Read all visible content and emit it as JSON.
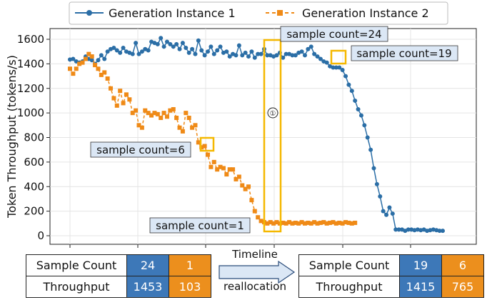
{
  "chart_data": {
    "type": "line",
    "ylabel": "Token Throughput (tokens/s)",
    "xlabel": "",
    "ylim": [
      0,
      1700
    ],
    "yticks": [
      0,
      200,
      400,
      600,
      800,
      1000,
      1200,
      1400,
      1600
    ],
    "grid": true,
    "legend_position": "top",
    "series": [
      {
        "name": "Generation Instance 1",
        "color": "#2b6ea6",
        "marker": "circle",
        "linestyle": "solid",
        "x": [
          1,
          2,
          3,
          4,
          5,
          6,
          7,
          8,
          9,
          10,
          11,
          12,
          13,
          14,
          15,
          16,
          17,
          18,
          19,
          20,
          21,
          22,
          23,
          24,
          25,
          26,
          27,
          28,
          29,
          30,
          31,
          32,
          33,
          34,
          35,
          36,
          37,
          38,
          39,
          40,
          41,
          42,
          43,
          44,
          45,
          46,
          47,
          48,
          49,
          50,
          51,
          52,
          53,
          54,
          55,
          56,
          57,
          58,
          59,
          60,
          61,
          62,
          63,
          64,
          65,
          66,
          67,
          68,
          69,
          70,
          71,
          72,
          73,
          74,
          75,
          76,
          77,
          78,
          79,
          80,
          81,
          82,
          83,
          84,
          85,
          86,
          87,
          88,
          89,
          90,
          91,
          92,
          93,
          94,
          95,
          96,
          97,
          98,
          99,
          100,
          101,
          102,
          103,
          104,
          105,
          106,
          107,
          108,
          109,
          110,
          111,
          112,
          113,
          114,
          115,
          116,
          117,
          118,
          119,
          120
        ],
        "y": [
          1435,
          1440,
          1420,
          1410,
          1420,
          1460,
          1440,
          1430,
          1400,
          1430,
          1470,
          1440,
          1500,
          1520,
          1530,
          1510,
          1490,
          1530,
          1500,
          1490,
          1480,
          1570,
          1480,
          1500,
          1520,
          1510,
          1580,
          1570,
          1560,
          1610,
          1540,
          1580,
          1560,
          1540,
          1560,
          1520,
          1570,
          1530,
          1490,
          1520,
          1480,
          1590,
          1510,
          1470,
          1500,
          1540,
          1480,
          1510,
          1540,
          1490,
          1500,
          1460,
          1480,
          1470,
          1550,
          1470,
          1490,
          1460,
          1500,
          1450,
          1480,
          1480,
          1520,
          1470,
          1470,
          1460,
          1470,
          1490,
          1450,
          1480,
          1480,
          1470,
          1470,
          1490,
          1500,
          1470,
          1520,
          1540,
          1480,
          1460,
          1440,
          1420,
          1410,
          1380,
          1370,
          1370,
          1370,
          1350,
          1300,
          1230,
          1180,
          1100,
          1030,
          980,
          900,
          800,
          700,
          550,
          420,
          320,
          200,
          170,
          230,
          180,
          50,
          50,
          50,
          40,
          50,
          50,
          45,
          50,
          45,
          50,
          40,
          45,
          50,
          45,
          40,
          40
        ]
      },
      {
        "name": "Generation Instance 2",
        "color": "#ef8a17",
        "marker": "square",
        "linestyle": "dashed",
        "x": [
          1,
          2,
          3,
          4,
          5,
          6,
          7,
          8,
          9,
          10,
          11,
          12,
          13,
          14,
          15,
          16,
          17,
          18,
          19,
          20,
          21,
          22,
          23,
          24,
          25,
          26,
          27,
          28,
          29,
          30,
          31,
          32,
          33,
          34,
          35,
          36,
          37,
          38,
          39,
          40,
          41,
          42,
          43,
          44,
          45,
          46,
          47,
          48,
          49,
          50,
          51,
          52,
          53,
          54,
          55,
          56,
          57,
          58,
          59,
          60,
          61,
          62,
          63,
          64,
          65,
          66,
          67,
          68,
          69,
          70,
          71,
          72,
          73,
          74,
          75,
          76,
          77,
          78,
          79,
          80,
          81,
          82,
          83,
          84,
          85,
          86,
          87,
          88,
          89,
          90,
          91,
          92
        ],
        "y": [
          1360,
          1320,
          1360,
          1400,
          1410,
          1440,
          1480,
          1460,
          1390,
          1360,
          1310,
          1330,
          1280,
          1200,
          1120,
          1060,
          1180,
          1080,
          1150,
          1110,
          1000,
          1020,
          900,
          880,
          1020,
          1000,
          980,
          1000,
          990,
          960,
          1000,
          970,
          1020,
          1030,
          960,
          880,
          850,
          1000,
          960,
          880,
          900,
          760,
          720,
          730,
          660,
          560,
          600,
          540,
          560,
          550,
          500,
          540,
          540,
          460,
          480,
          410,
          380,
          400,
          290,
          200,
          150,
          120,
          110,
          100,
          110,
          100,
          110,
          100,
          105,
          100,
          110,
          100,
          105,
          100,
          110,
          100,
          105,
          100,
          110,
          100,
          105,
          110,
          100,
          105,
          110,
          100,
          105,
          100,
          110,
          105,
          100,
          105
        ]
      }
    ],
    "annotations": [
      {
        "text": "sample count=24"
      },
      {
        "text": "sample count=19"
      },
      {
        "text": "sample count=6"
      },
      {
        "text": "sample count=1"
      },
      {
        "text": "①"
      }
    ]
  },
  "tables": {
    "before": {
      "rows": [
        {
          "label": "Sample Count",
          "instance1": "24",
          "instance2": "1"
        },
        {
          "label": "Throughput",
          "instance1": "1453",
          "instance2": "103"
        }
      ]
    },
    "after": {
      "rows": [
        {
          "label": "Sample Count",
          "instance1": "19",
          "instance2": "6"
        },
        {
          "label": "Throughput",
          "instance1": "1415",
          "instance2": "765"
        }
      ]
    },
    "arrow_top_label": "Timeline",
    "arrow_bottom_label": "reallocation"
  },
  "colors": {
    "instance1": "#2b6ea6",
    "instance2": "#ef8a17",
    "highlight": "#f5b800",
    "annotation_bg": "#dbe7f5",
    "cell_blue": "#3d78b8",
    "cell_orange": "#ec8f1d"
  }
}
